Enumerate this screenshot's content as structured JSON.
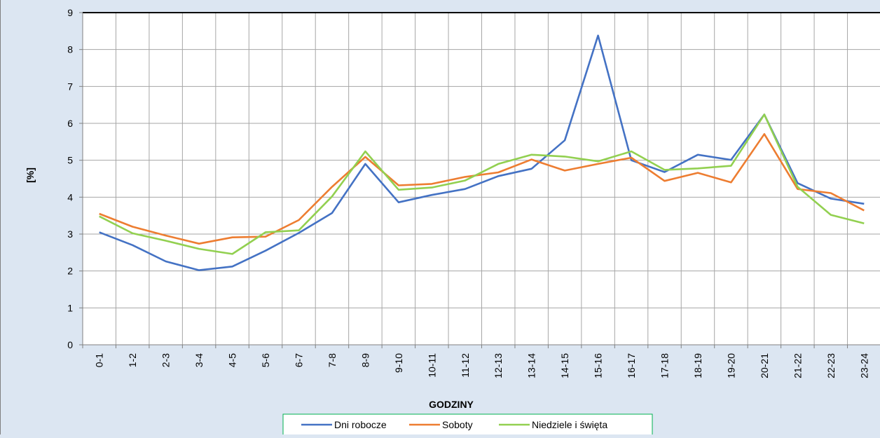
{
  "chart_data": {
    "type": "line",
    "title": "",
    "xlabel": "GODZINY",
    "ylabel": "[%]",
    "ylim": [
      0,
      9
    ],
    "yticks": [
      0,
      1,
      2,
      3,
      4,
      5,
      6,
      7,
      8,
      9
    ],
    "grid": true,
    "legend_position": "bottom",
    "categories": [
      "0-1",
      "1-2",
      "2-3",
      "3-4",
      "4-5",
      "5-6",
      "6-7",
      "7-8",
      "8-9",
      "9-10",
      "10-11",
      "11-12",
      "12-13",
      "13-14",
      "14-15",
      "15-16",
      "16-17",
      "17-18",
      "18-19",
      "19-20",
      "20-21",
      "21-22",
      "22-23",
      "23-24"
    ],
    "series": [
      {
        "name": "Dni robocze",
        "color": "#4472c4",
        "values": [
          3.05,
          2.7,
          2.26,
          2.02,
          2.12,
          2.55,
          3.03,
          3.57,
          4.9,
          3.86,
          4.06,
          4.22,
          4.57,
          4.77,
          5.54,
          8.38,
          5.0,
          4.68,
          5.15,
          5.01,
          6.24,
          4.38,
          3.96,
          3.82
        ]
      },
      {
        "name": "Soboty",
        "color": "#ed7d31",
        "values": [
          3.55,
          3.2,
          2.96,
          2.74,
          2.91,
          2.93,
          3.38,
          4.28,
          5.09,
          4.32,
          4.36,
          4.55,
          4.67,
          5.02,
          4.72,
          4.9,
          5.07,
          4.44,
          4.66,
          4.4,
          5.71,
          4.22,
          4.11,
          3.64
        ]
      },
      {
        "name": "Niedziele i święta",
        "color": "#92d050",
        "values": [
          3.48,
          3.02,
          2.82,
          2.6,
          2.46,
          3.05,
          3.1,
          4.02,
          5.24,
          4.2,
          4.26,
          4.45,
          4.9,
          5.15,
          5.1,
          4.97,
          5.24,
          4.74,
          4.78,
          4.85,
          6.24,
          4.28,
          3.52,
          3.29
        ]
      }
    ]
  }
}
